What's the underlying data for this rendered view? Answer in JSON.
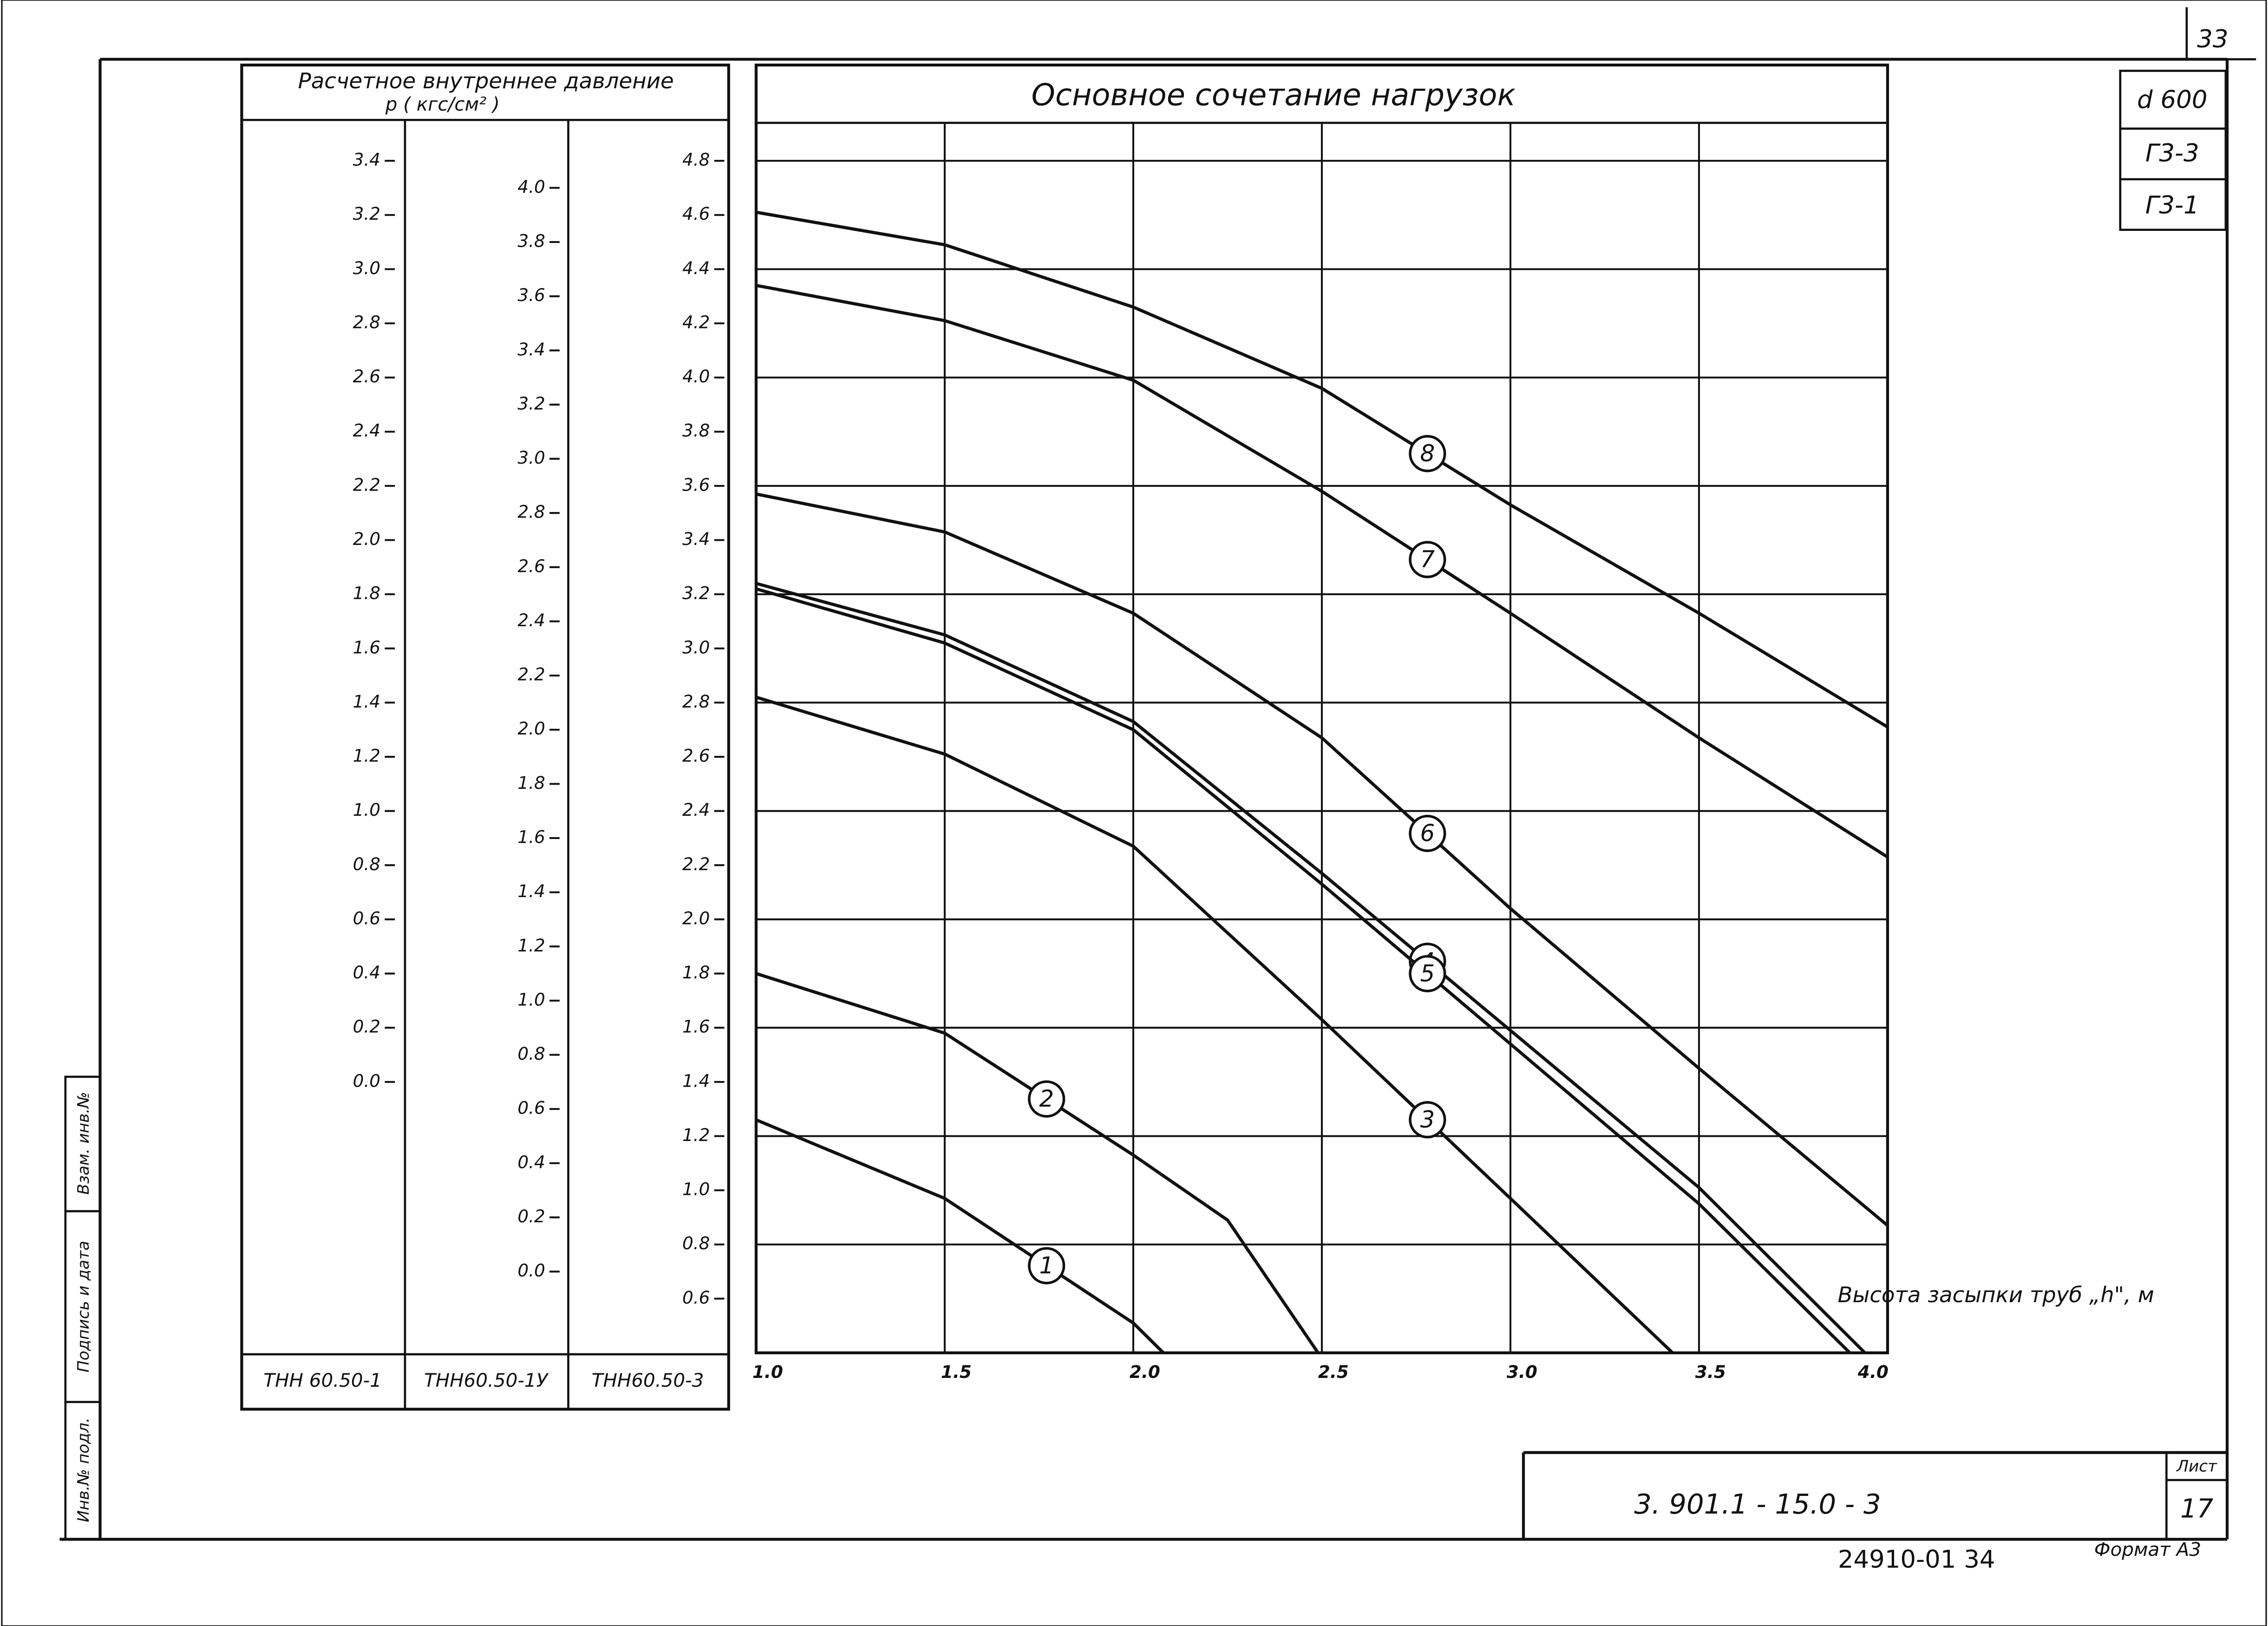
{
  "sheet": {
    "page_number": "33",
    "pressure_header": "Расчетное внутреннее давление",
    "pressure_unit": "p ( кгс/см² )",
    "code_d": "d 600",
    "code_g3_3": "Г3-3",
    "code_g3_1": "Г3-1",
    "side_labels": [
      "Инв.№ подл.",
      "Подпись и дата",
      "Взам. инв.№"
    ],
    "document_number": "3. 901.1 - 15.0 - 3",
    "sheet_label": "Лист",
    "sheet_number": "17",
    "archive_number": "24910-01  34",
    "format": "Формат А3"
  },
  "chart_data": {
    "type": "line",
    "title": "Основное сочетание нагрузок",
    "x_label": "Высота засыпки труб „h\", м",
    "xlim": [
      1.0,
      4.0
    ],
    "xticks": [
      {
        "value": 1.0,
        "label": "1.0"
      },
      1.5,
      {
        "value": 2.0,
        "label": "2.0"
      },
      2.5,
      {
        "value": 3.0,
        "label": "3.0"
      },
      3.5,
      {
        "value": 4.0,
        "label": "4.0"
      }
    ],
    "ylim": [
      0.4,
      4.94
    ],
    "y_axis_name": "ТНН60.50-3",
    "yticks": [
      0.6,
      0.8,
      {
        "value": 1.0,
        "label": "1.0"
      },
      1.2,
      1.4,
      1.6,
      1.8,
      {
        "value": 2.0,
        "label": "2.0"
      },
      2.2,
      2.4,
      2.6,
      2.8,
      {
        "value": 3.0,
        "label": "3.0"
      },
      3.2,
      3.4,
      3.6,
      3.8,
      {
        "value": 4.0,
        "label": "4.0"
      },
      4.2,
      4.4,
      4.6,
      4.8
    ],
    "extra_axes": [
      {
        "name": "ТНН 60.50-1",
        "ylim": [
          -1.0,
          3.54
        ],
        "yticks": [
          {
            "value": 0.0,
            "label": "0.0"
          },
          0.2,
          0.4,
          0.6,
          0.8,
          {
            "value": 1.0,
            "label": "1.0"
          },
          1.2,
          1.4,
          1.6,
          1.8,
          {
            "value": 2.0,
            "label": "2.0"
          },
          2.2,
          2.4,
          2.6,
          2.8,
          {
            "value": 3.0,
            "label": "3.0"
          },
          3.2,
          3.4
        ]
      },
      {
        "name": "ТНН60.50-1У",
        "ylim": [
          -0.3,
          4.24
        ],
        "yticks": [
          {
            "value": 0.0,
            "label": "0.0"
          },
          0.2,
          0.4,
          0.6,
          0.8,
          {
            "value": 1.0,
            "label": "1.0"
          },
          1.2,
          1.4,
          1.6,
          1.8,
          {
            "value": 2.0,
            "label": "2.0"
          },
          2.2,
          2.4,
          2.6,
          2.8,
          {
            "value": 3.0,
            "label": "3.0"
          },
          3.2,
          3.4,
          3.6,
          3.8,
          {
            "value": 4.0,
            "label": "4.0"
          }
        ]
      }
    ],
    "grid": true,
    "color": "#111111",
    "series": [
      {
        "name": "1",
        "x": [
          1.0,
          1.5,
          2.0,
          2.08
        ],
        "values": [
          1.26,
          0.97,
          0.51,
          0.4
        ]
      },
      {
        "name": "2",
        "x": [
          1.0,
          1.5,
          2.0,
          2.25,
          2.49
        ],
        "values": [
          1.8,
          1.58,
          1.13,
          0.89,
          0.4
        ]
      },
      {
        "name": "3",
        "x": [
          1.0,
          1.5,
          2.0,
          2.5,
          3.0,
          3.43
        ],
        "values": [
          2.82,
          2.61,
          2.27,
          1.63,
          0.97,
          0.4
        ]
      },
      {
        "name": "4",
        "x": [
          1.0,
          1.5,
          2.0,
          2.5,
          3.0,
          3.5,
          3.94
        ],
        "values": [
          3.24,
          3.05,
          2.73,
          2.17,
          1.59,
          1.01,
          0.4
        ]
      },
      {
        "name": "5",
        "x": [
          1.0,
          1.5,
          2.0,
          2.5,
          3.0,
          3.5,
          3.9
        ],
        "values": [
          3.22,
          3.02,
          2.7,
          2.13,
          1.54,
          0.95,
          0.4
        ]
      },
      {
        "name": "6",
        "x": [
          1.0,
          1.5,
          2.0,
          2.5,
          3.0,
          3.5,
          4.0
        ],
        "values": [
          3.57,
          3.43,
          3.13,
          2.67,
          2.04,
          1.45,
          0.87
        ]
      },
      {
        "name": "7",
        "x": [
          1.0,
          1.5,
          2.0,
          2.5,
          3.0,
          3.5,
          4.0
        ],
        "values": [
          4.34,
          4.21,
          3.99,
          3.58,
          3.13,
          2.67,
          2.23
        ]
      },
      {
        "name": "8",
        "x": [
          1.0,
          1.5,
          2.0,
          2.5,
          3.0,
          3.5,
          4.0
        ],
        "values": [
          4.61,
          4.49,
          4.26,
          3.96,
          3.53,
          3.13,
          2.71
        ]
      }
    ]
  }
}
